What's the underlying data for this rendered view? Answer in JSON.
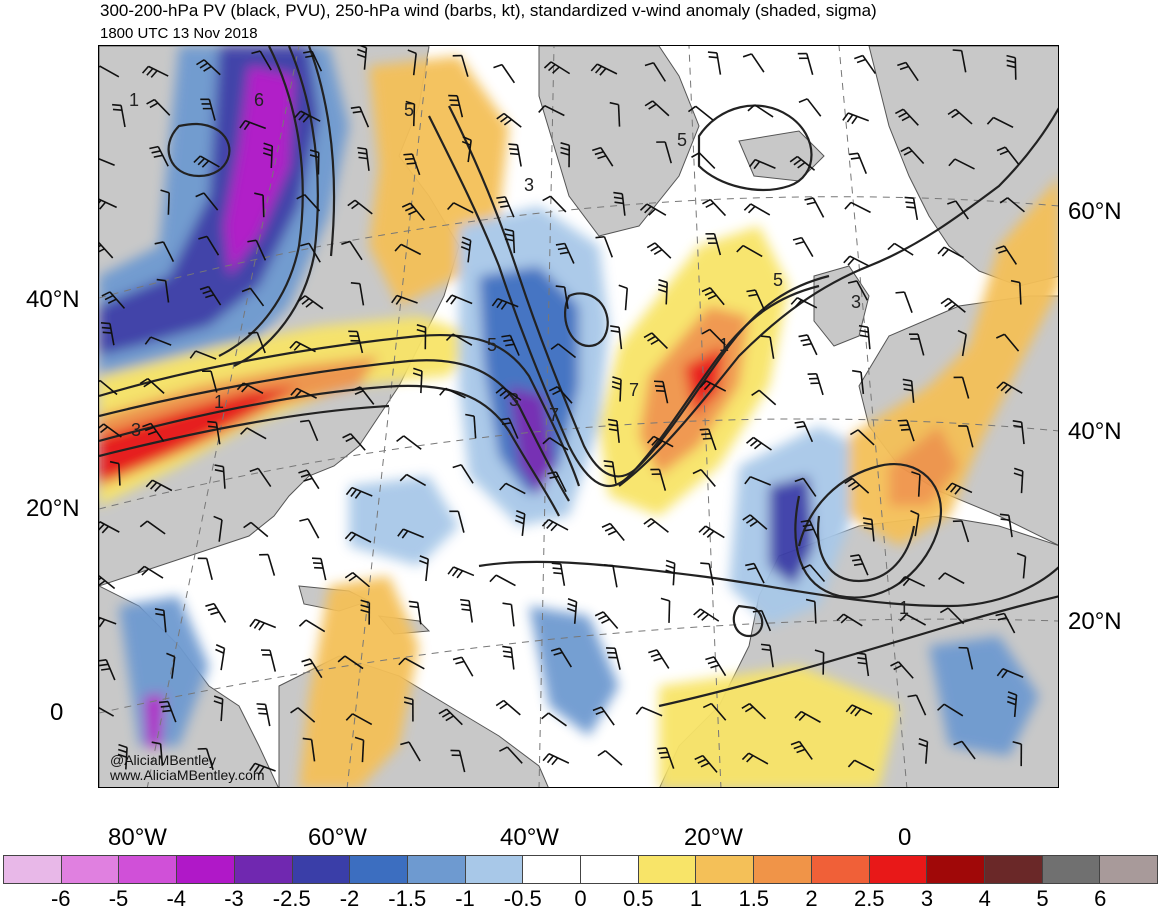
{
  "title": "300-200-hPa PV (black, PVU), 250-hPa wind (barbs, kt), standardized v-wind anomaly (shaded, sigma)",
  "subtitle": "1800 UTC 13 Nov 2018",
  "credit": {
    "handle": "@AliciaMBentley",
    "website": "www.AliciaMBentley.com"
  },
  "map": {
    "projection": "polar stereographic",
    "left_latitude_labels": [
      "40°N",
      "20°N",
      "0"
    ],
    "right_latitude_labels": [
      "60°N",
      "40°N",
      "20°N"
    ],
    "longitude_labels": [
      "80°W",
      "60°W",
      "40°W",
      "20°W",
      "0"
    ],
    "pv_contour_labels": [
      "6",
      "1",
      "5",
      "3",
      "5",
      "3",
      "7",
      "5",
      "1",
      "7",
      "1",
      "3",
      "5",
      "3",
      "1"
    ],
    "land_color": "#c8c8c8",
    "coastline_color": "#555555"
  },
  "colorbar": {
    "labels": [
      "-6",
      "-5",
      "-4",
      "-3",
      "-2.5",
      "-2",
      "-1.5",
      "-1",
      "-0.5",
      "0",
      "0.5",
      "1",
      "1.5",
      "2",
      "2.5",
      "3",
      "4",
      "5",
      "6"
    ],
    "colors": [
      "#e8b8e8",
      "#e080e0",
      "#d050d8",
      "#b018c8",
      "#7028b0",
      "#3a3ea8",
      "#3c6ec0",
      "#6e9ad0",
      "#a8c8e8",
      "#ffffff",
      "#ffffff",
      "#f8e468",
      "#f4c058",
      "#f09448",
      "#f06038",
      "#e81818",
      "#a00808",
      "#6a2828",
      "#707070",
      "#a89a9a"
    ]
  }
}
